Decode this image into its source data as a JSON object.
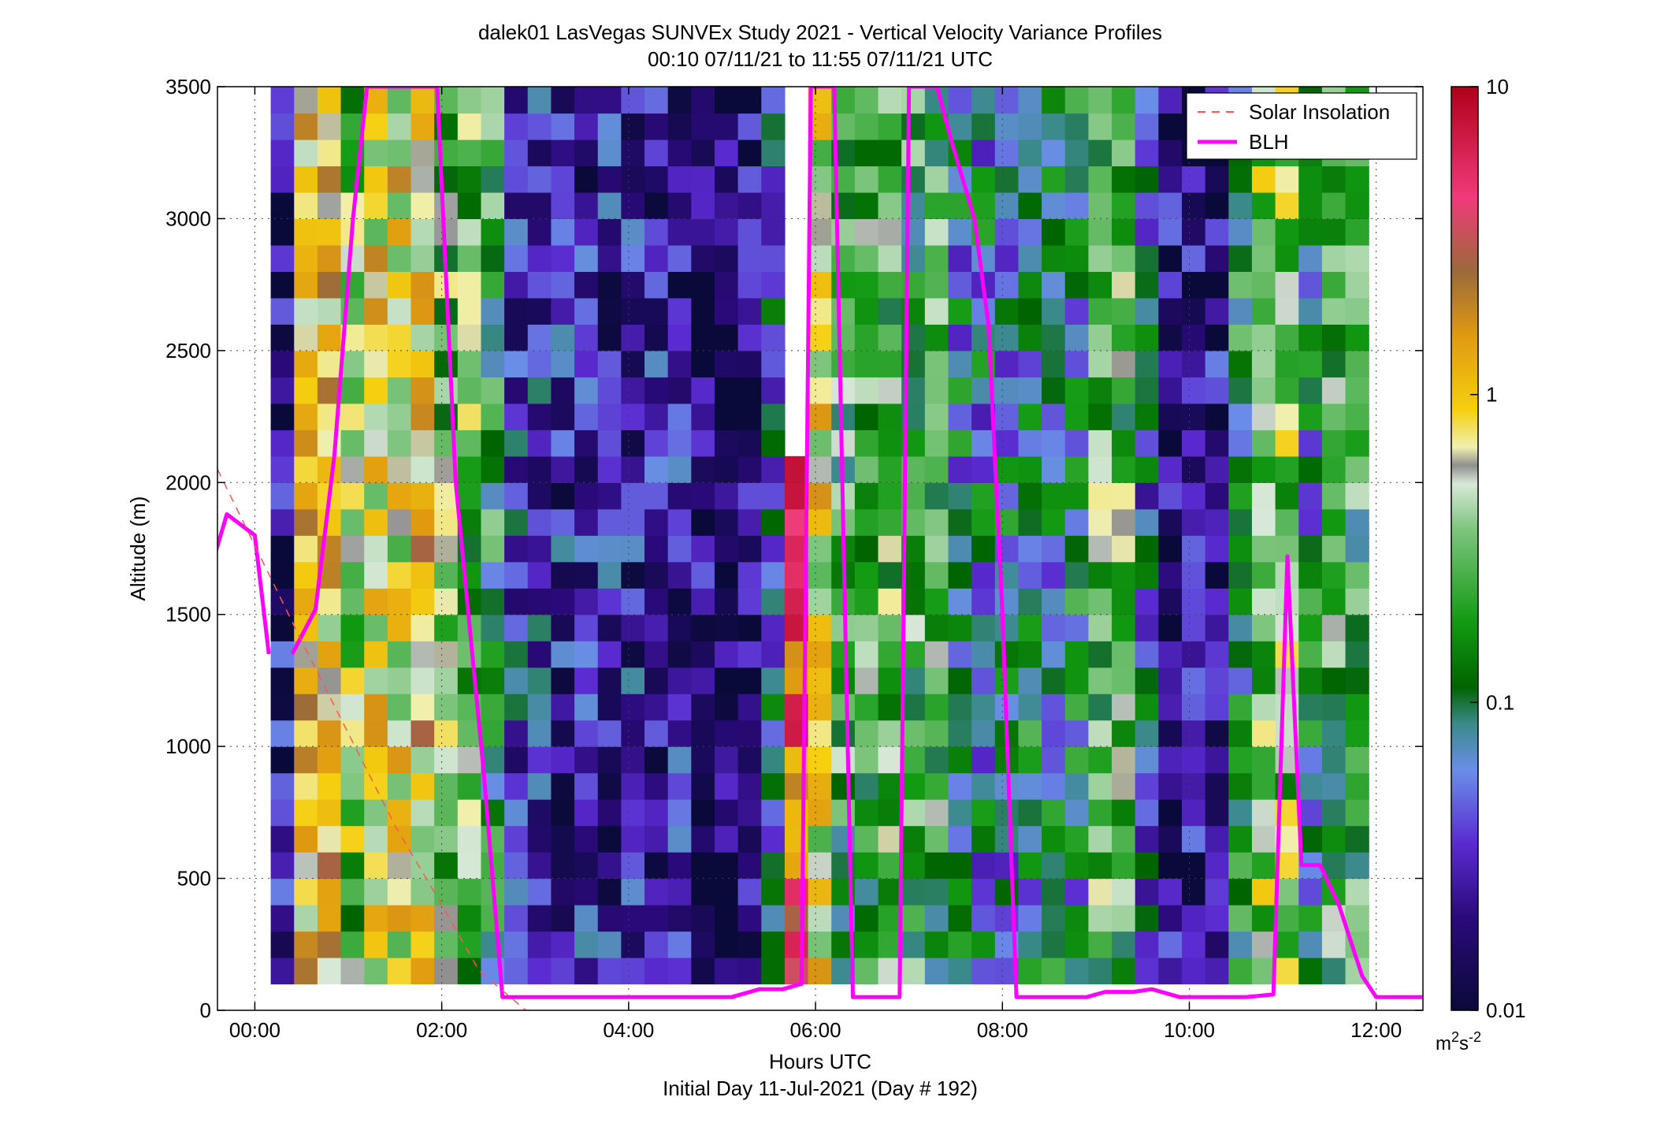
{
  "figure": {
    "title_line1": "dalek01 LasVegas SUNVEx Study 2021 - Vertical Velocity Variance Profiles",
    "title_line2": "00:10 07/11/21 to 11:55 07/11/21  UTC"
  },
  "chart_data": {
    "type": "heatmap",
    "xlabel": "Hours UTC",
    "xlabel2": "Initial Day 11-Jul-2021 (Day # 192)",
    "ylabel": "Altitude (m)",
    "xlim": [
      -0.4,
      12.5
    ],
    "ylim": [
      0,
      3500
    ],
    "x_ticks": [
      0,
      2,
      4,
      6,
      8,
      10,
      12
    ],
    "x_tick_labels": [
      "00:00",
      "02:00",
      "04:00",
      "06:00",
      "08:00",
      "10:00",
      "12:00"
    ],
    "y_ticks": [
      0,
      500,
      1000,
      1500,
      2000,
      2500,
      3000,
      3500
    ],
    "y_tick_labels": [
      "0",
      "500",
      "1000",
      "1500",
      "2000",
      "2500",
      "3000",
      "3500"
    ],
    "grid": true,
    "colorbar": {
      "scale": "log",
      "range": [
        0.01,
        10
      ],
      "ticks": [
        0.01,
        0.1,
        1,
        10
      ],
      "tick_labels": [
        "0.01",
        "0.1",
        "1",
        "10"
      ],
      "unit_base": "m",
      "unit_exp1": "2",
      "unit_mid": "s",
      "unit_exp2": "-2"
    },
    "heatmap": {
      "x_start_hours": 0.17,
      "x_end_hours": 11.92,
      "time_step_hours": 0.25,
      "alt_start_m": 100,
      "alt_end_m": 3500,
      "alt_step_m": 50,
      "note_missing": "no valid data above 2100 m at 05:40-05:50"
    },
    "legend": {
      "placement": "top-right",
      "entries": [
        {
          "label": "Solar Insolation",
          "color": "#ff5555",
          "style": "dashed"
        },
        {
          "label": "BLH",
          "color": "#ff00ff",
          "style": "solid"
        }
      ]
    },
    "series": [
      {
        "name": "BLH",
        "color": "#ff00ff",
        "x": [
          -0.45,
          -0.3,
          -0.15,
          0.0,
          0.1,
          0.15
        ],
        "y": [
          1700,
          1880,
          1840,
          1800,
          1500,
          1350
        ],
        "x_part2": [
          0.4,
          0.65,
          0.85,
          1.05,
          1.2,
          1.25,
          1.35,
          1.5,
          1.75,
          1.95,
          2.15,
          2.45,
          2.65,
          3.0,
          4.0,
          4.5,
          5.1,
          5.4,
          5.65,
          5.85,
          5.95,
          6.0,
          6.1,
          6.2,
          6.4,
          6.6,
          6.9,
          7.0,
          7.1,
          7.3,
          7.45,
          7.7,
          7.85,
          8.0,
          8.15,
          8.4,
          8.9,
          9.1,
          9.4,
          9.6,
          9.9,
          10.2,
          10.6,
          10.9,
          11.05,
          11.2,
          11.4,
          11.6,
          11.85,
          12.0,
          12.2,
          12.5
        ],
        "y_part2": [
          1350,
          1520,
          2100,
          3000,
          3500,
          3500,
          3500,
          3500,
          3500,
          3500,
          2000,
          900,
          50,
          50,
          50,
          50,
          50,
          80,
          80,
          100,
          3500,
          3500,
          3500,
          3500,
          50,
          50,
          50,
          3500,
          3500,
          3500,
          3300,
          3000,
          2600,
          1500,
          50,
          50,
          50,
          70,
          70,
          80,
          50,
          50,
          50,
          60,
          1720,
          550,
          550,
          400,
          130,
          50,
          50,
          50
        ]
      },
      {
        "name": "Solar Insolation",
        "color": "#ff5555",
        "x": [
          -0.4,
          0.5,
          1.0,
          1.5,
          2.0,
          2.4,
          2.9
        ],
        "y": [
          2050,
          1400,
          1050,
          700,
          400,
          150,
          0
        ]
      }
    ]
  }
}
